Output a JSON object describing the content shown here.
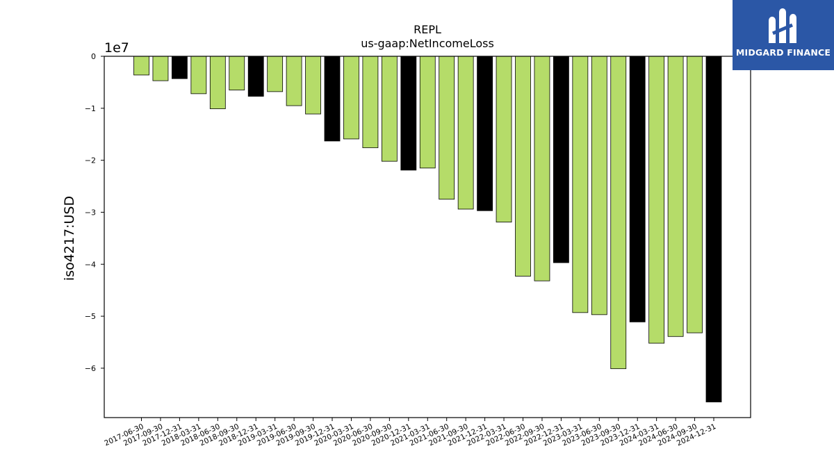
{
  "chart_data": {
    "type": "bar",
    "title": "REPL",
    "subtitle": "us-gaap:NetIncomeLoss",
    "ylabel": "iso4217:USD",
    "xlabel": "",
    "y_offset_text": "1e7",
    "ylim": [
      -69500000,
      0
    ],
    "y_ticks": [
      0,
      -10000000,
      -20000000,
      -30000000,
      -40000000,
      -50000000,
      -60000000
    ],
    "y_tick_labels": [
      "0",
      "−1",
      "−2",
      "−3",
      "−4",
      "−5",
      "−6"
    ],
    "grid": false,
    "legend": "none",
    "colors": {
      "quarterly": "#b5dc69",
      "annual": "#000000"
    },
    "categories": [
      "2017-06-30",
      "2017-09-30",
      "2017-12-31",
      "2018-03-31",
      "2018-06-30",
      "2018-09-30",
      "2018-12-31",
      "2019-03-31",
      "2019-06-30",
      "2019-09-30",
      "2019-12-31",
      "2020-03-31",
      "2020-06-30",
      "2020-09-30",
      "2020-12-31",
      "2021-03-31",
      "2021-06-30",
      "2021-09-30",
      "2021-12-31",
      "2022-03-31",
      "2022-06-30",
      "2022-09-30",
      "2022-12-31",
      "2023-03-31",
      "2023-06-30",
      "2023-09-30",
      "2023-12-31",
      "2024-03-31",
      "2024-06-30",
      "2024-09-30",
      "2024-12-31"
    ],
    "values": [
      -3600000,
      -4700000,
      -4300000,
      -7200000,
      -10100000,
      -6500000,
      -7700000,
      -6800000,
      -9500000,
      -11100000,
      -16300000,
      -15900000,
      -17600000,
      -20200000,
      -21900000,
      -21500000,
      -27500000,
      -29400000,
      -29700000,
      -31900000,
      -42300000,
      -43200000,
      -39700000,
      -49300000,
      -49700000,
      -60100000,
      -51100000,
      -55200000,
      -53900000,
      -53200000,
      -66500000
    ],
    "highlight": [
      false,
      false,
      true,
      false,
      false,
      false,
      true,
      false,
      false,
      false,
      true,
      false,
      false,
      false,
      true,
      false,
      false,
      false,
      true,
      false,
      false,
      false,
      true,
      false,
      false,
      false,
      true,
      false,
      false,
      false,
      true
    ]
  },
  "logo": {
    "text": "MIDGARD FINANCE",
    "color": "#2b57a6"
  }
}
